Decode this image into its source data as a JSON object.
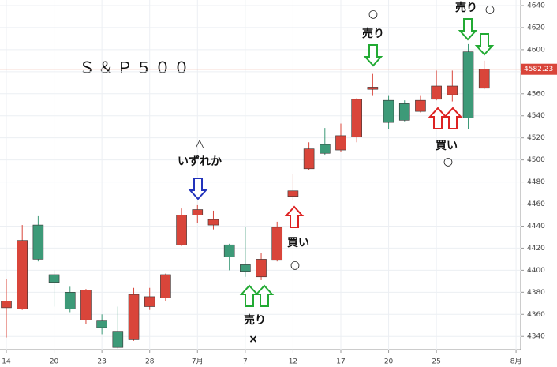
{
  "chart_data": {
    "type": "candlestick",
    "title": "Ｓ＆Ｐ５００",
    "categories": [
      "14",
      null,
      null,
      "20",
      null,
      null,
      "23",
      null,
      null,
      "28",
      null,
      null,
      "7月",
      null,
      null,
      "7",
      null,
      null,
      "12",
      null,
      null,
      "17",
      null,
      null,
      "20",
      null,
      null,
      "25",
      null,
      null,
      null,
      null,
      "8月"
    ],
    "open": [
      4366,
      4365,
      4441,
      4396,
      4380,
      4355,
      4354,
      4344,
      4337,
      4367,
      4375,
      4423,
      4450,
      4441,
      4423,
      4405,
      4394,
      4409,
      4467,
      4492,
      4514,
      4509,
      4521,
      4564,
      4554,
      4551,
      4544,
      4555,
      4559,
      4598,
      4565,
      null,
      null
    ],
    "high": [
      4392,
      4441,
      4449,
      4400,
      4385,
      4383,
      4360,
      4367,
      4384,
      4384,
      4397,
      4456,
      4459,
      4454,
      4424,
      4439,
      4416,
      4444,
      4487,
      4516,
      4529,
      4533,
      4556,
      4578,
      4558,
      4554,
      4558,
      4581,
      4581,
      4605,
      4590,
      null,
      null
    ],
    "low": [
      4339,
      4364,
      4408,
      4367,
      4362,
      4351,
      4342,
      4329,
      4336,
      4364,
      4372,
      4422,
      4443,
      4437,
      4400,
      4394,
      4391,
      4408,
      4464,
      4491,
      4504,
      4507,
      4516,
      4558,
      4528,
      4535,
      4543,
      4554,
      4553,
      4528,
      4564,
      null,
      null
    ],
    "close": [
      4372,
      4427,
      4410,
      4389,
      4365,
      4382,
      4348,
      4330,
      4378,
      4376,
      4396,
      4450,
      4455,
      4446,
      4412,
      4399,
      4410,
      4439,
      4472,
      4510,
      4506,
      4522,
      4555,
      4566,
      4534,
      4536,
      4554,
      4567,
      4567,
      4538,
      4582.23,
      null,
      null
    ],
    "up_color": "#d9453a",
    "down_color": "#3d9a78",
    "last_price": 4582.23,
    "ylim": [
      4328,
      4645
    ],
    "yticks": [
      4340,
      4360,
      4380,
      4400,
      4420,
      4440,
      4460,
      4480,
      4500,
      4520,
      4540,
      4560,
      4580,
      4600,
      4620,
      4640
    ],
    "grid": true,
    "annotations": [
      "○",
      "売り",
      "売り",
      "○",
      "△",
      "いずれか",
      "買い",
      "○",
      "売り",
      "×",
      "買い",
      "○"
    ]
  }
}
